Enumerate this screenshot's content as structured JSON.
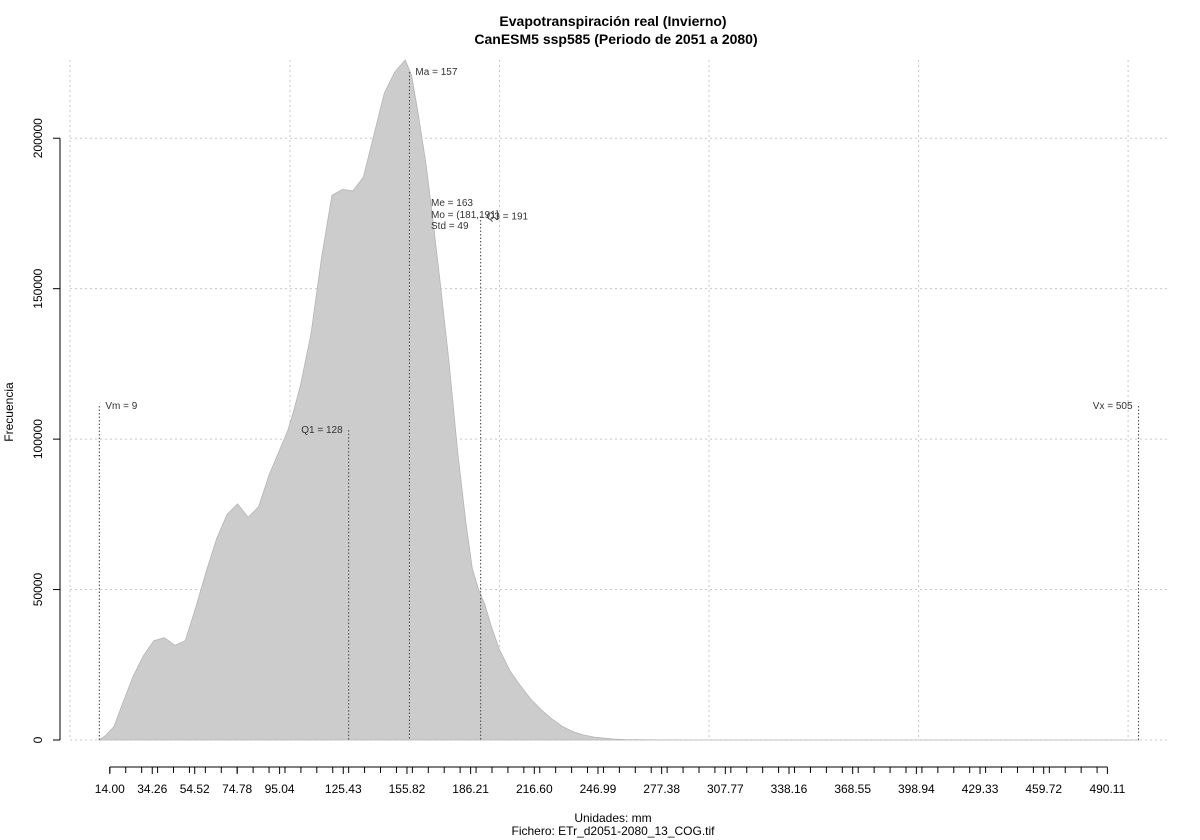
{
  "chart_data": {
    "type": "area",
    "title": "Evapotranspiración real (Invierno)",
    "subtitle": "CanESM5 ssp585 (Periodo de 2051 a 2080)",
    "xlabel": "Unidades: mm",
    "file_label": "Fichero: ETr_d2051-2080_13_COG.tif",
    "ylabel": "Frecuencia",
    "xlim": [
      -5,
      520
    ],
    "ylim": [
      0,
      226000
    ],
    "x_ticks": [
      14.0,
      34.26,
      54.52,
      74.78,
      95.04,
      125.43,
      155.82,
      186.21,
      216.6,
      246.99,
      277.38,
      307.77,
      338.16,
      368.55,
      398.94,
      429.33,
      459.72,
      490.11
    ],
    "x_tick_labels": [
      "14.00",
      "34.26",
      "54.52",
      "74.78",
      "95.04",
      "125.43",
      "155.82",
      "186.21",
      "216.60",
      "246.99",
      "277.38",
      "307.77",
      "338.16",
      "368.55",
      "398.94",
      "429.33",
      "459.72",
      "490.11"
    ],
    "x_minor_step": 7.6,
    "x_grid": [
      100,
      200,
      300,
      400,
      500
    ],
    "y_ticks": [
      0,
      50000,
      100000,
      150000,
      200000
    ],
    "y_tick_labels": [
      "0",
      "50000",
      "100000",
      "150000",
      "200000"
    ],
    "grid": true,
    "fill_color": "#cccccc",
    "x": [
      9,
      12,
      16,
      20,
      25,
      30,
      35,
      40,
      45,
      50,
      55,
      60,
      65,
      70,
      75,
      80,
      85,
      90,
      93,
      96,
      99,
      102,
      105,
      110,
      115,
      120,
      125,
      130,
      135,
      140,
      145,
      150,
      155,
      158,
      161,
      165,
      168,
      172,
      176,
      180,
      184,
      187,
      190,
      193,
      196,
      200,
      205,
      210,
      215,
      220,
      225,
      230,
      235,
      240,
      245,
      250,
      255,
      260,
      270,
      280,
      290,
      300,
      310,
      330,
      350,
      400,
      450,
      505
    ],
    "y": [
      0,
      1500,
      4500,
      12000,
      21000,
      28000,
      33000,
      34000,
      31500,
      33000,
      44000,
      56000,
      67000,
      75000,
      78500,
      74000,
      77500,
      88000,
      93000,
      98000,
      103000,
      110000,
      118000,
      135000,
      160000,
      181000,
      183000,
      182500,
      187000,
      201000,
      215000,
      222000,
      226000,
      221000,
      209000,
      191000,
      174000,
      150000,
      125000,
      96000,
      72000,
      57000,
      50000,
      45000,
      38000,
      30000,
      23000,
      18000,
      13500,
      10000,
      7000,
      4500,
      2800,
      1700,
      1000,
      600,
      300,
      150,
      60,
      20,
      5,
      0,
      0,
      0,
      0,
      0,
      0,
      0
    ],
    "markers": [
      {
        "label": "Vm = 9",
        "x": 9,
        "y_top": 111000,
        "label_side": "right"
      },
      {
        "label": "Q1 = 128",
        "x": 128,
        "y_top": 103000,
        "label_side": "left"
      },
      {
        "label": "Ma = 157",
        "x": 157,
        "y_top": 222000,
        "label_side": "right"
      },
      {
        "label": "Q3 = 191",
        "x": 191,
        "y_top": 174000,
        "label_side": "right"
      },
      {
        "label": "Vx = 505",
        "x": 505,
        "y_top": 111000,
        "label_side": "left"
      }
    ],
    "stats_labels": [
      "Me = 163",
      "Mo = (181,191]",
      "Std = 49"
    ]
  }
}
